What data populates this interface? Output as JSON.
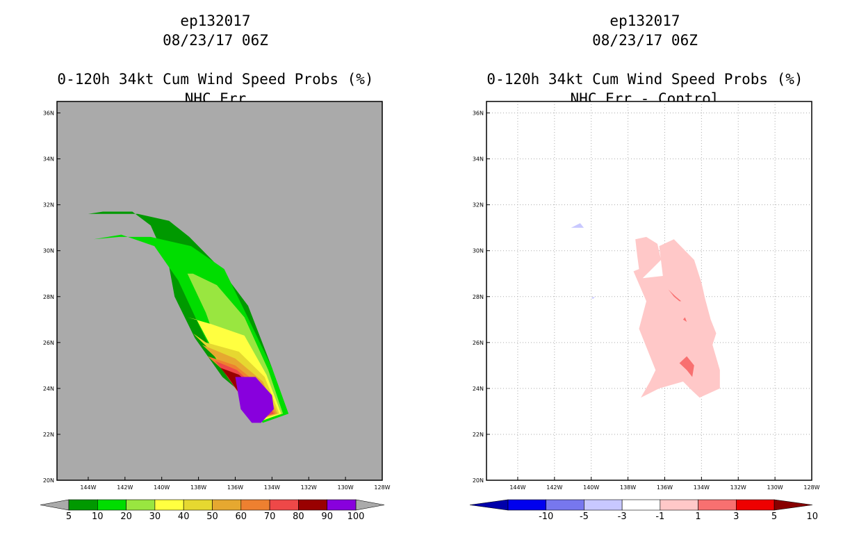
{
  "left_panel": {
    "title_lines": [
      "ep132017",
      "08/23/17 06Z",
      "",
      "0-120h 34kt Cum Wind Speed Probs (%)",
      "NHC Err"
    ],
    "background_color": "#aaaaaa",
    "colorbar": {
      "labels": [
        "5",
        "10",
        "20",
        "30",
        "40",
        "50",
        "60",
        "70",
        "80",
        "90",
        "100"
      ],
      "colors": [
        "#009900",
        "#00dd00",
        "#99e640",
        "#ffff40",
        "#e6d830",
        "#e6a830",
        "#ee8030",
        "#ee4848",
        "#990000",
        "#8800dd"
      ],
      "end_color": "#aaaaaa"
    }
  },
  "right_panel": {
    "title_lines": [
      "ep132017",
      "08/23/17 06Z",
      "",
      "0-120h 34kt Cum Wind Speed Probs (%)",
      "NHC Err - Control"
    ],
    "background_color": "#ffffff",
    "colorbar": {
      "labels": [
        "-10",
        "-5",
        "-3",
        "-1",
        "1",
        "3",
        "5",
        "10"
      ],
      "colors": [
        "#0000aa",
        "#0000ee",
        "#7777ee",
        "#c8c8ff",
        "#ffffff",
        "#ffc8c8",
        "#f87070",
        "#ee0000",
        "#880000"
      ]
    }
  },
  "chart_data": [
    {
      "type": "filled-contour-map",
      "title": "0-120h 34kt Cum Wind Speed Probs (%)",
      "subtitle": "NHC Err",
      "storm": "ep132017",
      "datetime": "08/23/17 06Z",
      "x_ticks": [
        "144W",
        "142W",
        "140W",
        "138W",
        "136W",
        "134W",
        "132W",
        "130W",
        "128W"
      ],
      "y_ticks": [
        "20N",
        "22N",
        "24N",
        "26N",
        "28N",
        "30N",
        "32N",
        "34N",
        "36N"
      ],
      "xlim": [
        -145.7,
        -128
      ],
      "ylim": [
        20,
        36.5
      ],
      "units": "%",
      "levels": [
        5,
        10,
        20,
        30,
        40,
        50,
        60,
        70,
        80,
        90,
        100
      ],
      "contours": [
        {
          "level": 5,
          "color": "#009900",
          "points": [
            [
              -144.0,
              31.6
            ],
            [
              -143.2,
              31.7
            ],
            [
              -141.6,
              31.7
            ],
            [
              -140.6,
              31.1
            ],
            [
              -139.6,
              29.3
            ],
            [
              -139.3,
              28.0
            ],
            [
              -138.2,
              26.2
            ],
            [
              -136.7,
              24.5
            ],
            [
              -134.3,
              22.9
            ],
            [
              -133.2,
              22.9
            ],
            [
              -134.0,
              24.9
            ],
            [
              -135.3,
              27.6
            ],
            [
              -136.9,
              29.3
            ],
            [
              -138.5,
              30.6
            ],
            [
              -139.6,
              31.3
            ],
            [
              -141.3,
              31.6
            ],
            [
              -143.0,
              31.6
            ]
          ]
        },
        {
          "level": 10,
          "color": "#00dd00",
          "points": [
            [
              -143.7,
              30.5
            ],
            [
              -142.2,
              30.7
            ],
            [
              -140.4,
              30.2
            ],
            [
              -139.1,
              28.7
            ],
            [
              -138.0,
              26.8
            ],
            [
              -137.0,
              25.2
            ],
            [
              -134.5,
              22.5
            ],
            [
              -133.1,
              22.9
            ],
            [
              -134.0,
              24.9
            ],
            [
              -135.5,
              27.4
            ],
            [
              -136.6,
              29.2
            ],
            [
              -138.4,
              30.2
            ],
            [
              -140.6,
              30.6
            ],
            [
              -142.3,
              30.6
            ]
          ]
        },
        {
          "level": 20,
          "color": "#99e640",
          "points": [
            [
              -139.0,
              29.0
            ],
            [
              -138.6,
              29.0
            ],
            [
              -137.6,
              27.3
            ],
            [
              -136.8,
              25.5
            ],
            [
              -134.6,
              22.6
            ],
            [
              -133.4,
              22.9
            ],
            [
              -134.2,
              24.8
            ],
            [
              -135.5,
              27.1
            ],
            [
              -137.0,
              28.5
            ],
            [
              -138.3,
              29.0
            ]
          ]
        },
        {
          "level": 30,
          "color": "#ffff40",
          "points": [
            [
              -138.6,
              27.1
            ],
            [
              -138.1,
              27.0
            ],
            [
              -137.3,
              25.8
            ],
            [
              -136.5,
              24.8
            ],
            [
              -134.5,
              22.6
            ],
            [
              -133.5,
              22.9
            ],
            [
              -134.3,
              24.6
            ],
            [
              -135.5,
              26.3
            ],
            [
              -137.3,
              26.8
            ]
          ]
        },
        {
          "level": 40,
          "color": "#e6d830",
          "points": [
            [
              -138.3,
              26.4
            ],
            [
              -137.4,
              25.7
            ],
            [
              -136.4,
              24.6
            ],
            [
              -134.5,
              22.7
            ],
            [
              -133.6,
              22.9
            ],
            [
              -134.4,
              24.5
            ],
            [
              -135.8,
              25.6
            ],
            [
              -137.6,
              26.0
            ]
          ]
        },
        {
          "level": 50,
          "color": "#e6a830",
          "points": [
            [
              -137.8,
              25.9
            ],
            [
              -137.0,
              25.3
            ],
            [
              -136.2,
              24.3
            ],
            [
              -134.5,
              22.7
            ],
            [
              -133.7,
              22.9
            ],
            [
              -134.5,
              24.3
            ],
            [
              -136.0,
              25.3
            ]
          ]
        },
        {
          "level": 60,
          "color": "#ee8030",
          "points": [
            [
              -137.5,
              25.4
            ],
            [
              -136.8,
              24.9
            ],
            [
              -136.0,
              24.1
            ],
            [
              -134.4,
              22.8
            ],
            [
              -133.8,
              22.9
            ],
            [
              -134.6,
              24.1
            ],
            [
              -136.0,
              25.0
            ]
          ]
        },
        {
          "level": 70,
          "color": "#ee4848",
          "points": [
            [
              -137.1,
              25.2
            ],
            [
              -136.6,
              24.7
            ],
            [
              -135.9,
              23.9
            ],
            [
              -134.3,
              22.8
            ],
            [
              -133.9,
              22.9
            ],
            [
              -134.7,
              23.9
            ],
            [
              -135.9,
              24.8
            ]
          ]
        },
        {
          "level": 80,
          "color": "#990000",
          "points": [
            [
              -136.8,
              24.9
            ],
            [
              -136.4,
              24.5
            ],
            [
              -135.8,
              23.8
            ],
            [
              -134.3,
              22.9
            ],
            [
              -134.0,
              23.0
            ],
            [
              -134.8,
              23.9
            ],
            [
              -135.8,
              24.6
            ]
          ]
        },
        {
          "level": 90,
          "color": "#8800dd",
          "points": [
            [
              -135.7,
              24.5
            ],
            [
              -136.0,
              24.5
            ],
            [
              -135.7,
              23.1
            ],
            [
              -135.1,
              22.5
            ],
            [
              -134.6,
              22.5
            ],
            [
              -133.9,
              23.1
            ],
            [
              -134.0,
              23.7
            ],
            [
              -134.9,
              24.5
            ]
          ]
        }
      ]
    },
    {
      "type": "filled-contour-map",
      "title": "0-120h 34kt Cum Wind Speed Probs (%)",
      "subtitle": "NHC Err - Control",
      "storm": "ep132017",
      "datetime": "08/23/17 06Z",
      "x_ticks": [
        "144W",
        "142W",
        "140W",
        "138W",
        "136W",
        "134W",
        "132W",
        "130W",
        "128W"
      ],
      "y_ticks": [
        "20N",
        "22N",
        "24N",
        "26N",
        "28N",
        "30N",
        "32N",
        "34N",
        "36N"
      ],
      "xlim": [
        -145.7,
        -128
      ],
      "ylim": [
        20,
        36.5
      ],
      "grid": true,
      "levels": [
        -10,
        -5,
        -3,
        -1,
        1,
        3,
        5,
        10
      ],
      "contours": [
        {
          "level": 1,
          "color": "#ffc8c8",
          "points": [
            [
              -137.6,
              30.5
            ],
            [
              -137.0,
              30.6
            ],
            [
              -136.4,
              30.3
            ],
            [
              -136.2,
              29.6
            ],
            [
              -137.2,
              28.8
            ],
            [
              -136.1,
              28.9
            ],
            [
              -136.3,
              30.2
            ],
            [
              -135.5,
              30.5
            ],
            [
              -134.4,
              29.6
            ],
            [
              -134.0,
              28.6
            ],
            [
              -133.8,
              27.9
            ],
            [
              -133.5,
              27.0
            ],
            [
              -133.2,
              26.4
            ],
            [
              -133.4,
              25.9
            ],
            [
              -133.0,
              24.8
            ],
            [
              -133.0,
              24.0
            ],
            [
              -134.1,
              23.6
            ],
            [
              -134.5,
              23.9
            ],
            [
              -135.0,
              24.3
            ],
            [
              -136.3,
              24.0
            ],
            [
              -137.3,
              23.6
            ],
            [
              -136.8,
              24.3
            ],
            [
              -136.5,
              24.8
            ],
            [
              -137.4,
              26.6
            ],
            [
              -137.0,
              27.8
            ],
            [
              -137.7,
              29.1
            ],
            [
              -137.4,
              29.2
            ],
            [
              -137.5,
              29.8
            ]
          ]
        },
        {
          "level": 3,
          "color": "#f87070",
          "points": [
            [
              -135.2,
              27.8
            ],
            [
              -135.5,
              28.0
            ],
            [
              -135.8,
              28.3
            ],
            [
              -135.4,
              28.0
            ],
            [
              -135.1,
              27.8
            ]
          ]
        },
        {
          "level": 3,
          "color": "#f87070",
          "points": [
            [
              -134.8,
              25.4
            ],
            [
              -135.2,
              25.1
            ],
            [
              -134.8,
              24.8
            ],
            [
              -134.5,
              24.5
            ],
            [
              -134.4,
              25.0
            ]
          ]
        },
        {
          "level": 3,
          "color": "#f87070",
          "points": [
            [
              -134.9,
              27.1
            ],
            [
              -134.8,
              26.9
            ],
            [
              -135.0,
              27.0
            ]
          ]
        },
        {
          "level": -1,
          "color": "#c8c8ff",
          "points": [
            [
              -141.1,
              31.0
            ],
            [
              -140.6,
              31.2
            ],
            [
              -140.4,
              31.0
            ],
            [
              -140.9,
              31.0
            ]
          ]
        },
        {
          "level": -1,
          "color": "#c8c8ff",
          "points": [
            [
              -140.0,
              27.95
            ],
            [
              -139.8,
              28.0
            ],
            [
              -139.9,
              27.9
            ]
          ]
        }
      ]
    }
  ]
}
